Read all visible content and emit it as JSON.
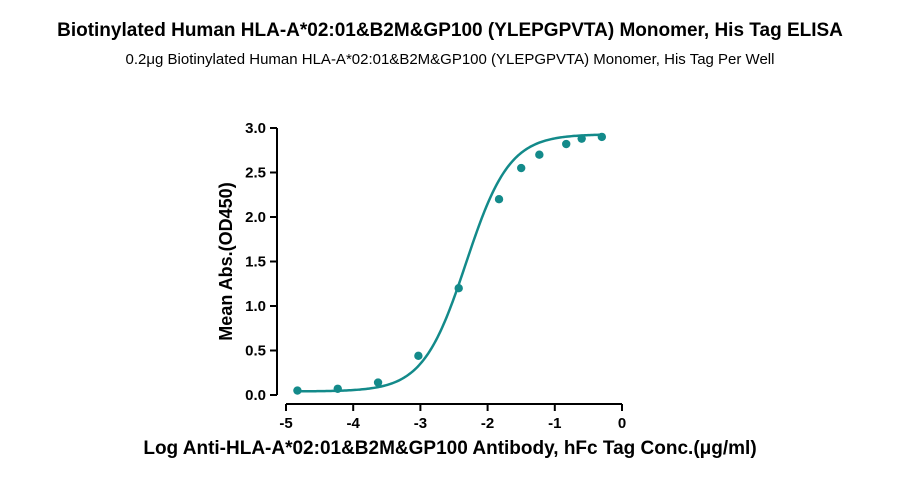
{
  "chart_data": {
    "type": "scatter",
    "title": "Biotinylated Human HLA-A*02:01&B2M&GP100 (YLEPGPVTA) Monomer, His Tag ELISA",
    "subtitle": "0.2μg Biotinylated Human HLA-A*02:01&B2M&GP100 (YLEPGPVTA) Monomer, His Tag Per Well",
    "xlabel": "Log Anti-HLA-A*02:01&B2M&GP100 Antibody, hFc Tag Conc.(μg/ml)",
    "ylabel": "Mean Abs.(OD450)",
    "xlim": [
      -5,
      0
    ],
    "ylim": [
      0,
      3.0
    ],
    "x_ticks": [
      -5,
      -4,
      -3,
      -2,
      -1,
      0
    ],
    "x_tick_labels": [
      "-5",
      "-4",
      "-3",
      "-2",
      "-1",
      "0"
    ],
    "y_ticks": [
      0,
      0.5,
      1.0,
      1.5,
      2.0,
      2.5,
      3.0
    ],
    "y_tick_labels": [
      "0.0",
      "0.5",
      "1.0",
      "1.5",
      "2.0",
      "2.5",
      "3.0"
    ],
    "grid": false,
    "series": [
      {
        "color": "#138a8a",
        "x": [
          -4.83,
          -4.23,
          -3.63,
          -3.03,
          -2.43,
          -1.83,
          -1.5,
          -1.23,
          -0.83,
          -0.6,
          -0.3
        ],
        "y": [
          0.05,
          0.07,
          0.14,
          0.44,
          1.2,
          2.2,
          2.55,
          2.7,
          2.82,
          2.88,
          2.9
        ],
        "fit": {
          "model": "4PL",
          "bottom": 0.04,
          "top": 2.93,
          "logEC50": -2.32,
          "hill": 1.35
        }
      }
    ]
  }
}
